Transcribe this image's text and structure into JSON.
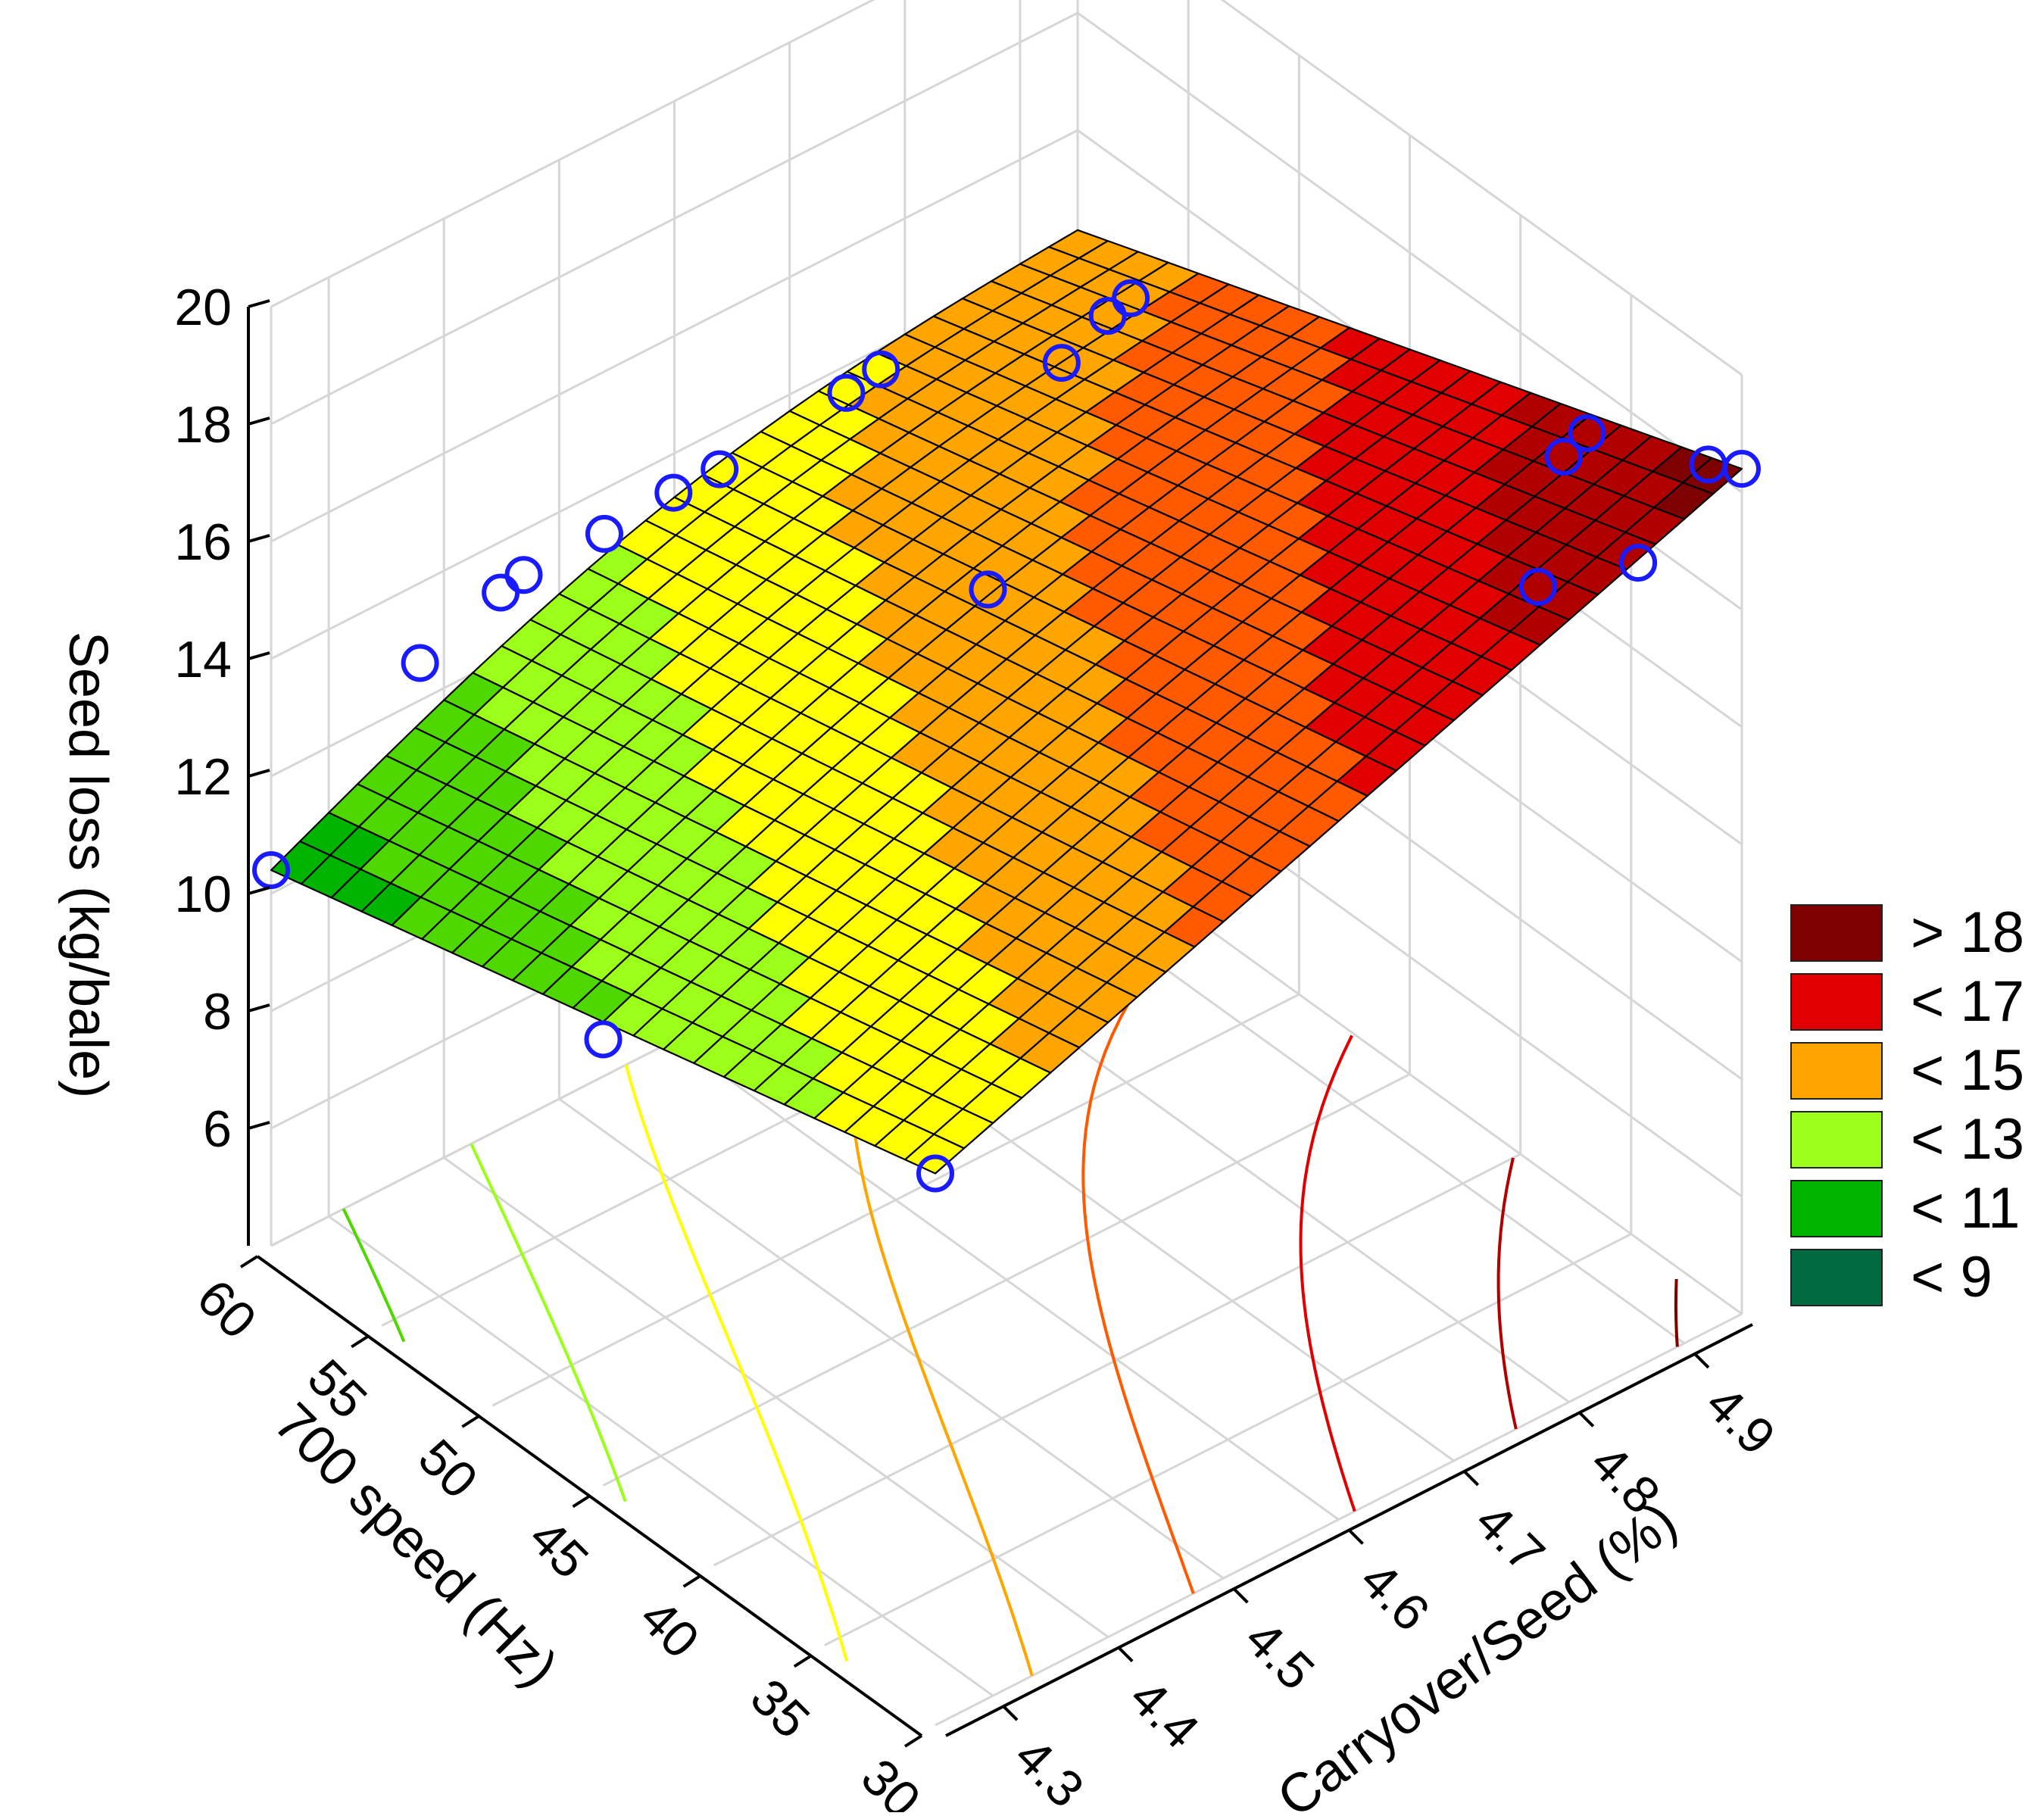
{
  "chart_data": {
    "type": "surface3d",
    "x_axis": {
      "label": "700 speed (Hz)",
      "ticks": [
        30,
        35,
        40,
        45,
        50,
        55,
        60
      ],
      "range": [
        30,
        60
      ]
    },
    "y_axis": {
      "label": "Carryover/Seed (%)",
      "ticks": [
        "4.3",
        "4.4",
        "4.5",
        "4.6",
        "4.7",
        "4.8",
        "4.9"
      ],
      "range": [
        4.25,
        4.95
      ]
    },
    "z_axis": {
      "label": "Seed loss (kg/bale)",
      "ticks": [
        6,
        8,
        10,
        12,
        14,
        16,
        18,
        20
      ],
      "range": [
        4,
        20
      ]
    },
    "surface_corners": [
      {
        "speed": 60,
        "carryover": 4.25,
        "seed_loss": 10.4
      },
      {
        "speed": 30,
        "carryover": 4.25,
        "seed_loss": 13.4
      },
      {
        "speed": 60,
        "carryover": 4.95,
        "seed_loss": 14.3
      },
      {
        "speed": 30,
        "carryover": 4.95,
        "seed_loss": 18.4
      }
    ],
    "observed_points": [
      {
        "speed": 60,
        "carryover": 4.25,
        "seed_loss": 10.4
      },
      {
        "speed": 45,
        "carryover": 4.25,
        "seed_loss": 11.6
      },
      {
        "speed": 30,
        "carryover": 4.25,
        "seed_loss": 13.4
      },
      {
        "speed": 59,
        "carryover": 4.36,
        "seed_loss": 13.1
      },
      {
        "speed": 59,
        "carryover": 4.43,
        "seed_loss": 13.6
      },
      {
        "speed": 59,
        "carryover": 4.45,
        "seed_loss": 13.7
      },
      {
        "speed": 59,
        "carryover": 4.52,
        "seed_loss": 13.7
      },
      {
        "speed": 59,
        "carryover": 4.58,
        "seed_loss": 13.8
      },
      {
        "speed": 59,
        "carryover": 4.62,
        "seed_loss": 13.8
      },
      {
        "speed": 50,
        "carryover": 4.68,
        "seed_loss": 13.6
      },
      {
        "speed": 59,
        "carryover": 4.73,
        "seed_loss": 14.0
      },
      {
        "speed": 59,
        "carryover": 4.76,
        "seed_loss": 14.1
      },
      {
        "speed": 55,
        "carryover": 4.84,
        "seed_loss": 14.5
      },
      {
        "speed": 55,
        "carryover": 4.88,
        "seed_loss": 14.9
      },
      {
        "speed": 55,
        "carryover": 4.9,
        "seed_loss": 15.0
      },
      {
        "speed": 34,
        "carryover": 4.85,
        "seed_loss": 16.3
      },
      {
        "speed": 37,
        "carryover": 4.93,
        "seed_loss": 16.9
      },
      {
        "speed": 37,
        "carryover": 4.95,
        "seed_loss": 17.1
      },
      {
        "speed": 30,
        "carryover": 4.95,
        "seed_loss": 18.4
      },
      {
        "speed": 30,
        "carryover": 4.86,
        "seed_loss": 17.7
      },
      {
        "speed": 31,
        "carryover": 4.94,
        "seed_loss": 18.3
      }
    ],
    "legend": {
      "position": "right",
      "entries": [
        {
          "label": "> 18",
          "color": "#7f0000"
        },
        {
          "label": "< 17",
          "color": "#e00000"
        },
        {
          "label": "< 15",
          "color": "#ffa500"
        },
        {
          "label": "< 13",
          "color": "#9bff1a"
        },
        {
          "label": "< 11",
          "color": "#00b400"
        },
        {
          "label": "< 9",
          "color": "#006a40"
        }
      ]
    },
    "contour_levels": [
      10,
      11,
      12,
      13,
      14,
      15,
      16,
      17,
      18
    ],
    "grid": true
  }
}
